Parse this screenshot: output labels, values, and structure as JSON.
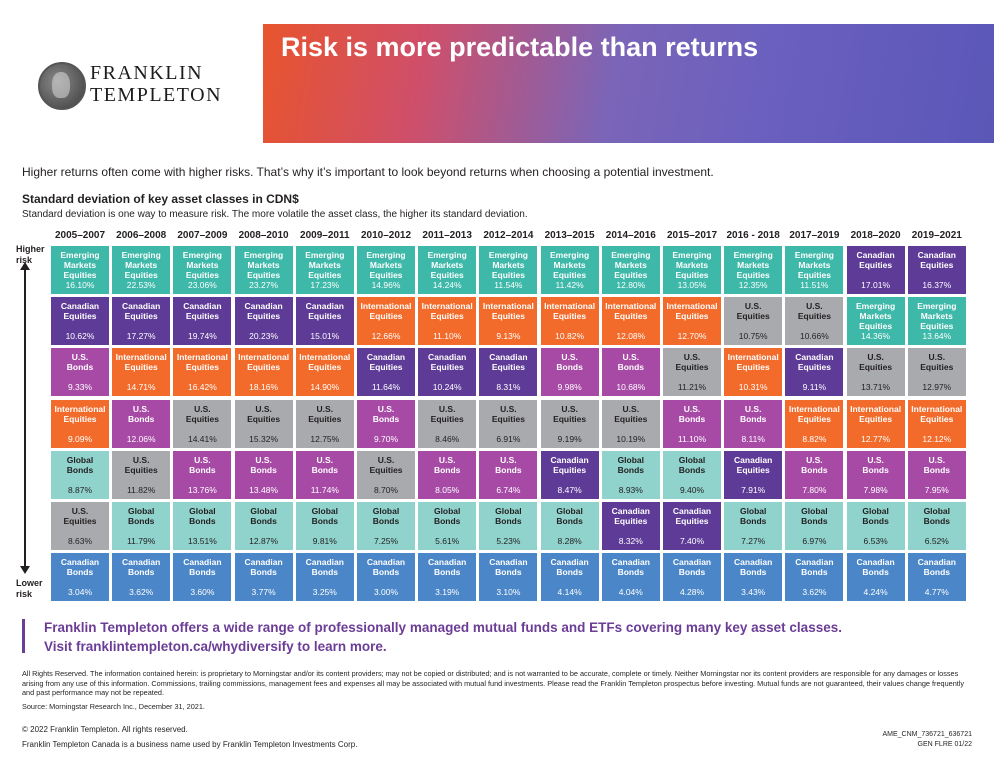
{
  "brand": {
    "name_line1": "FRANKLIN",
    "name_line2": "TEMPLETON"
  },
  "banner": {
    "title": "Risk is more predictable than returns"
  },
  "intro": "Higher returns often come with higher risks. That’s why it’s important to look beyond returns when choosing a potential investment.",
  "section": {
    "title": "Standard deviation of key asset classes in CDN$",
    "subtitle": "Standard deviation is one way to measure risk. The more volatile the asset class, the higher its standard deviation."
  },
  "axis": {
    "high": [
      "Higher",
      "risk"
    ],
    "low": [
      "Lower",
      "risk"
    ]
  },
  "colors": {
    "Emerging Markets Equities": "#3eb8a8",
    "Canadian Equities": "#5e3b97",
    "International Equities": "#f26b2a",
    "U.S. Bonds": "#a64aa5",
    "U.S. Equities": "#a8aaad",
    "Global Bonds": "#8fd3cc",
    "Canadian Bonds": "#4a86c8"
  },
  "chart_data": {
    "type": "table",
    "title": "Standard deviation of key asset classes in CDN$",
    "periods": [
      "2005–2007",
      "2006–2008",
      "2007–2009",
      "2008–2010",
      "2009–2011",
      "2010–2012",
      "2011–2013",
      "2012–2014",
      "2013–2015",
      "2014–2016",
      "2015–2017",
      "2016 - 2018",
      "2017–2019",
      "2018–2020",
      "2019–2021"
    ],
    "columns": [
      [
        [
          "Emerging Markets Equities",
          "16.10%"
        ],
        [
          "Canadian Equities",
          "10.62%"
        ],
        [
          "U.S. Bonds",
          "9.33%"
        ],
        [
          "International Equities",
          "9.09%"
        ],
        [
          "Global Bonds",
          "8.87%"
        ],
        [
          "U.S. Equities",
          "8.63%"
        ],
        [
          "Canadian Bonds",
          "3.04%"
        ]
      ],
      [
        [
          "Emerging Markets Equities",
          "22.53%"
        ],
        [
          "Canadian Equities",
          "17.27%"
        ],
        [
          "International Equities",
          "14.71%"
        ],
        [
          "U.S. Bonds",
          "12.06%"
        ],
        [
          "U.S. Equities",
          "11.82%"
        ],
        [
          "Global Bonds",
          "11.79%"
        ],
        [
          "Canadian Bonds",
          "3.62%"
        ]
      ],
      [
        [
          "Emerging Markets Equities",
          "23.06%"
        ],
        [
          "Canadian Equities",
          "19.74%"
        ],
        [
          "International Equities",
          "16.42%"
        ],
        [
          "U.S. Equities",
          "14.41%"
        ],
        [
          "U.S. Bonds",
          "13.76%"
        ],
        [
          "Global Bonds",
          "13.51%"
        ],
        [
          "Canadian Bonds",
          "3.60%"
        ]
      ],
      [
        [
          "Emerging Markets Equities",
          "23.27%"
        ],
        [
          "Canadian Equities",
          "20.23%"
        ],
        [
          "International Equities",
          "18.16%"
        ],
        [
          "U.S. Equities",
          "15.32%"
        ],
        [
          "U.S. Bonds",
          "13.48%"
        ],
        [
          "Global Bonds",
          "12.87%"
        ],
        [
          "Canadian Bonds",
          "3.77%"
        ]
      ],
      [
        [
          "Emerging Markets Equities",
          "17.23%"
        ],
        [
          "Canadian Equities",
          "15.01%"
        ],
        [
          "International Equities",
          "14.90%"
        ],
        [
          "U.S. Equities",
          "12.75%"
        ],
        [
          "U.S. Bonds",
          "11.74%"
        ],
        [
          "Global Bonds",
          "9.81%"
        ],
        [
          "Canadian Bonds",
          "3.25%"
        ]
      ],
      [
        [
          "Emerging Markets Equities",
          "14.96%"
        ],
        [
          "International Equities",
          "12.66%"
        ],
        [
          "Canadian Equities",
          "11.64%"
        ],
        [
          "U.S. Bonds",
          "9.70%"
        ],
        [
          "U.S. Equities",
          "8.70%"
        ],
        [
          "Global Bonds",
          "7.25%"
        ],
        [
          "Canadian Bonds",
          "3.00%"
        ]
      ],
      [
        [
          "Emerging Markets Equities",
          "14.24%"
        ],
        [
          "International Equities",
          "11.10%"
        ],
        [
          "Canadian Equities",
          "10.24%"
        ],
        [
          "U.S. Equities",
          "8.46%"
        ],
        [
          "U.S. Bonds",
          "8.05%"
        ],
        [
          "Global Bonds",
          "5.61%"
        ],
        [
          "Canadian Bonds",
          "3.19%"
        ]
      ],
      [
        [
          "Emerging Markets Equities",
          "11.54%"
        ],
        [
          "International Equities",
          "9.13%"
        ],
        [
          "Canadian Equities",
          "8.31%"
        ],
        [
          "U.S. Equities",
          "6.91%"
        ],
        [
          "U.S. Bonds",
          "6.74%"
        ],
        [
          "Global Bonds",
          "5.23%"
        ],
        [
          "Canadian Bonds",
          "3.10%"
        ]
      ],
      [
        [
          "Emerging Markets Equities",
          "11.42%"
        ],
        [
          "International Equities",
          "10.82%"
        ],
        [
          "U.S. Bonds",
          "9.98%"
        ],
        [
          "U.S. Equities",
          "9.19%"
        ],
        [
          "Canadian Equities",
          "8.47%"
        ],
        [
          "Global Bonds",
          "8.28%"
        ],
        [
          "Canadian Bonds",
          "4.14%"
        ]
      ],
      [
        [
          "Emerging Markets Equities",
          "12.80%"
        ],
        [
          "International Equities",
          "12.08%"
        ],
        [
          "U.S. Bonds",
          "10.68%"
        ],
        [
          "U.S. Equities",
          "10.19%"
        ],
        [
          "Global Bonds",
          "8.93%"
        ],
        [
          "Canadian Equities",
          "8.32%"
        ],
        [
          "Canadian Bonds",
          "4.04%"
        ]
      ],
      [
        [
          "Emerging Markets Equities",
          "13.05%"
        ],
        [
          "International Equities",
          "12.70%"
        ],
        [
          "U.S. Equities",
          "11.21%"
        ],
        [
          "U.S. Bonds",
          "11.10%"
        ],
        [
          "Global Bonds",
          "9.40%"
        ],
        [
          "Canadian Equities",
          "7.40%"
        ],
        [
          "Canadian Bonds",
          "4.28%"
        ]
      ],
      [
        [
          "Emerging Markets Equities",
          "12.35%"
        ],
        [
          "U.S. Equities",
          "10.75%"
        ],
        [
          "International Equities",
          "10.31%"
        ],
        [
          "U.S. Bonds",
          "8.11%"
        ],
        [
          "Canadian Equities",
          "7.91%"
        ],
        [
          "Global Bonds",
          "7.27%"
        ],
        [
          "Canadian Bonds",
          "3.43%"
        ]
      ],
      [
        [
          "Emerging Markets Equities",
          "11.51%"
        ],
        [
          "U.S. Equities",
          "10.66%"
        ],
        [
          "Canadian Equities",
          "9.11%"
        ],
        [
          "International Equities",
          "8.82%"
        ],
        [
          "U.S. Bonds",
          "7.80%"
        ],
        [
          "Global Bonds",
          "6.97%"
        ],
        [
          "Canadian Bonds",
          "3.62%"
        ]
      ],
      [
        [
          "Canadian Equities",
          "17.01%"
        ],
        [
          "Emerging Markets Equities",
          "14.36%"
        ],
        [
          "U.S. Equities",
          "13.71%"
        ],
        [
          "International Equities",
          "12.77%"
        ],
        [
          "U.S. Bonds",
          "7.98%"
        ],
        [
          "Global Bonds",
          "6.53%"
        ],
        [
          "Canadian Bonds",
          "4.24%"
        ]
      ],
      [
        [
          "Canadian Equities",
          "16.37%"
        ],
        [
          "Emerging Markets Equities",
          "13.64%"
        ],
        [
          "U.S. Equities",
          "12.97%"
        ],
        [
          "International Equities",
          "12.12%"
        ],
        [
          "U.S. Bonds",
          "7.95%"
        ],
        [
          "Global Bonds",
          "6.52%"
        ],
        [
          "Canadian Bonds",
          "4.77%"
        ]
      ]
    ]
  },
  "cta": {
    "line1": "Franklin Templeton offers a wide range of professionally managed mutual funds and ETFs covering many key asset classes.",
    "line2": "Visit franklintempleton.ca/whydiversify to learn more."
  },
  "footer": {
    "disclaimer": "All Rights Reserved. The information contained herein: is proprietary to Morningstar and/or its content providers; may not be copied or distributed; and is not warranted to be accurate, complete or timely. Neither Morningstar nor its content providers are responsible for any damages or losses arising from any use of this information. Commissions, trailing commissions, management fees and expenses all may be associated with mutual fund investments. Please read the Franklin Templeton prospectus before investing. Mutual funds are not guaranteed, their values change frequently and past performance may not be repeated.",
    "source": "Source: Morningstar Research Inc., December 31, 2021.",
    "copyright": "© 2022 Franklin Templeton. All rights reserved.",
    "business": "Franklin Templeton Canada is a business name used by Franklin Templeton Investments Corp.",
    "code1": "AME_CNM_736721_636721",
    "code2": "GEN FLRE 01/22"
  }
}
